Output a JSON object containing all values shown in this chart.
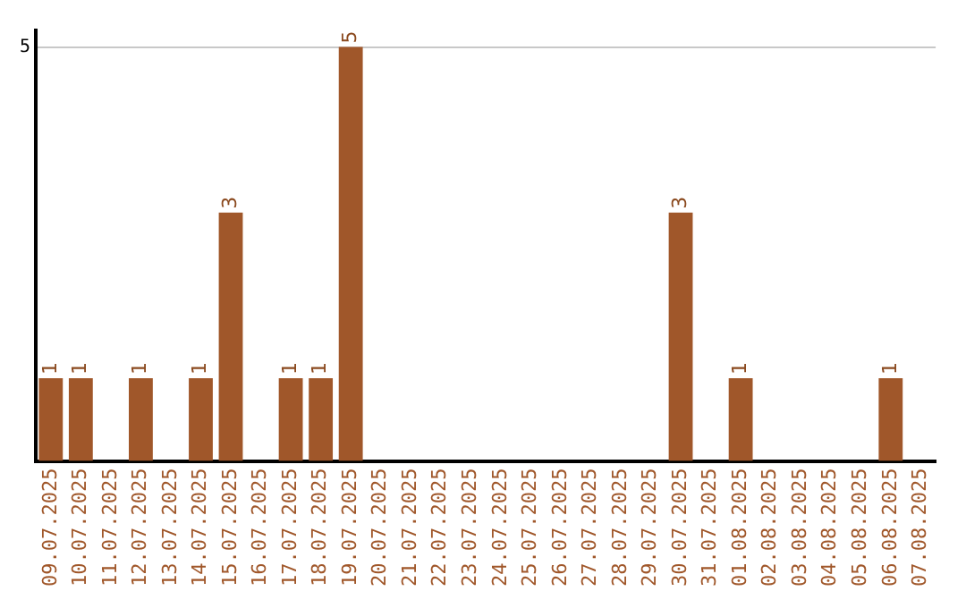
{
  "chart_data": {
    "type": "bar",
    "categories": [
      "09.07.2025",
      "10.07.2025",
      "11.07.2025",
      "12.07.2025",
      "13.07.2025",
      "14.07.2025",
      "15.07.2025",
      "16.07.2025",
      "17.07.2025",
      "18.07.2025",
      "19.07.2025",
      "20.07.2025",
      "21.07.2025",
      "22.07.2025",
      "23.07.2025",
      "24.07.2025",
      "25.07.2025",
      "26.07.2025",
      "27.07.2025",
      "28.07.2025",
      "29.07.2025",
      "30.07.2025",
      "31.07.2025",
      "01.08.2025",
      "02.08.2025",
      "03.08.2025",
      "04.08.2025",
      "05.08.2025",
      "06.08.2025",
      "07.08.2025"
    ],
    "values": [
      1,
      1,
      0,
      1,
      0,
      1,
      3,
      0,
      1,
      1,
      5,
      0,
      0,
      0,
      0,
      0,
      0,
      0,
      0,
      0,
      0,
      3,
      0,
      1,
      0,
      0,
      0,
      0,
      1,
      0
    ],
    "value_labels": [
      "1",
      "1",
      null,
      "1",
      null,
      "1",
      "3",
      null,
      "1",
      "1",
      "5",
      null,
      null,
      null,
      null,
      null,
      null,
      null,
      null,
      null,
      null,
      "3",
      null,
      "1",
      null,
      null,
      null,
      null,
      "1",
      null
    ],
    "color": "#a0572a",
    "ylim": [
      0,
      5.2
    ],
    "yticks": [
      5
    ],
    "grid": "y",
    "legend": false
  }
}
